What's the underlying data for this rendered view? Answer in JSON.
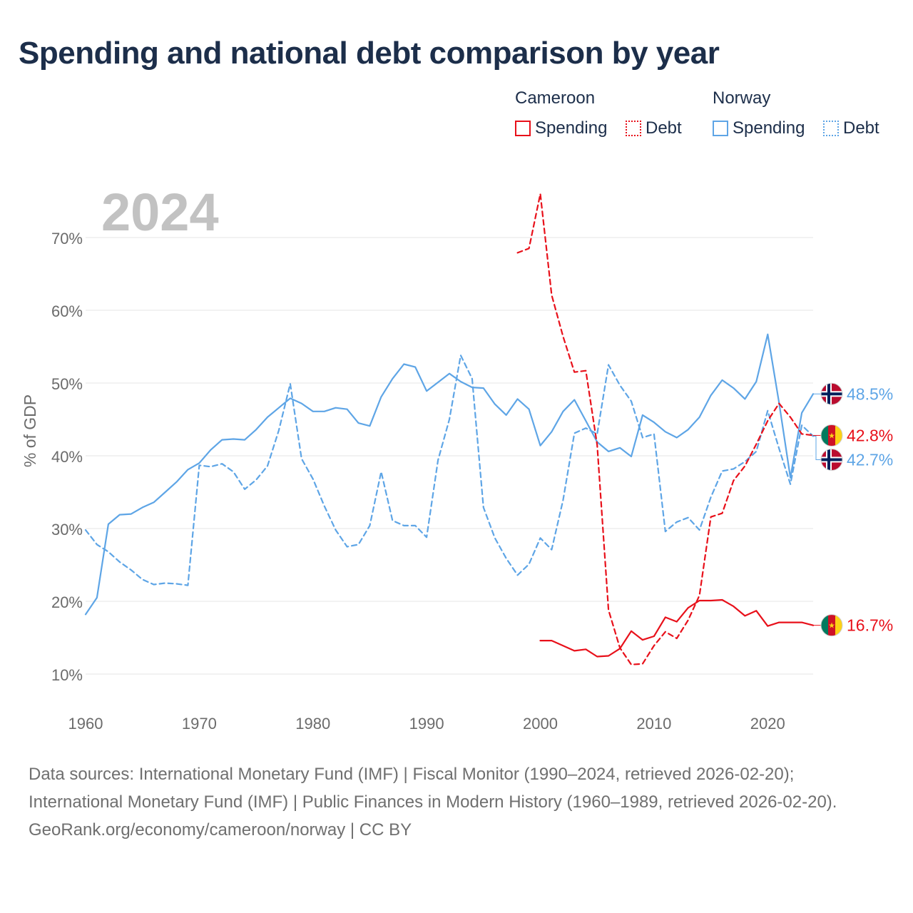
{
  "title": "Spending and national debt comparison by year",
  "legend": {
    "groups": [
      {
        "name": "Cameroon",
        "color": "#e8101a",
        "items": [
          {
            "label": "Spending",
            "style": "solid"
          },
          {
            "label": "Debt",
            "style": "dotted"
          }
        ]
      },
      {
        "name": "Norway",
        "color": "#5ea5e6",
        "items": [
          {
            "label": "Spending",
            "style": "solid"
          },
          {
            "label": "Debt",
            "style": "dotted"
          }
        ]
      }
    ]
  },
  "year_label": "2024",
  "footer": {
    "sources": "Data sources: International Monetary Fund (IMF) | Fiscal Monitor (1990–2024, retrieved 2026-02-20); International Monetary Fund (IMF) | Public Finances in Modern History (1960–1989, retrieved 2026-02-20).",
    "credit": "GeoRank.org/economy/cameroon/norway | CC BY"
  },
  "colors": {
    "cameroon": "#e8101a",
    "norway": "#5ea5e6",
    "title": "#1c2e4a",
    "year": "#c2c2c2",
    "grid": "#e6e6e6",
    "axis_text": "#6b6b6b"
  },
  "chart_data": {
    "type": "line",
    "title": "Spending and national debt comparison by year",
    "xlabel": "",
    "ylabel": "% of GDP",
    "xlim": [
      1960,
      2024
    ],
    "ylim": [
      7,
      75
    ],
    "x_ticks": [
      1960,
      1970,
      1980,
      1990,
      2000,
      2010,
      2020
    ],
    "y_ticks": [
      10,
      20,
      30,
      40,
      50,
      60,
      70
    ],
    "y_tick_labels": [
      "10%",
      "20%",
      "30%",
      "40%",
      "50%",
      "60%",
      "70%"
    ],
    "grid": true,
    "legend_position": "top-right",
    "series": [
      {
        "name": "Norway Spending",
        "country": "Norway",
        "metric": "Spending",
        "style": "solid",
        "x": [
          1960,
          1961,
          1962,
          1963,
          1964,
          1965,
          1966,
          1967,
          1968,
          1969,
          1970,
          1971,
          1972,
          1973,
          1974,
          1975,
          1976,
          1977,
          1978,
          1979,
          1980,
          1981,
          1982,
          1983,
          1984,
          1985,
          1986,
          1987,
          1988,
          1989,
          1990,
          1991,
          1992,
          1993,
          1994,
          1995,
          1996,
          1997,
          1998,
          1999,
          2000,
          2001,
          2002,
          2003,
          2004,
          2005,
          2006,
          2007,
          2008,
          2009,
          2010,
          2011,
          2012,
          2013,
          2014,
          2015,
          2016,
          2017,
          2018,
          2019,
          2020,
          2021,
          2022,
          2023,
          2024
        ],
        "y": [
          18.2,
          20.5,
          30.6,
          31.9,
          32.0,
          32.9,
          33.6,
          35.0,
          36.4,
          38.1,
          39.0,
          40.8,
          42.2,
          42.3,
          42.2,
          43.6,
          45.3,
          46.6,
          47.9,
          47.2,
          46.1,
          46.1,
          46.6,
          46.4,
          44.5,
          44.1,
          48.1,
          50.6,
          52.6,
          52.2,
          48.9,
          50.1,
          51.3,
          50.2,
          49.4,
          49.3,
          47.1,
          45.6,
          47.8,
          46.4,
          41.4,
          43.3,
          46.1,
          47.7,
          44.8,
          41.9,
          40.6,
          41.1,
          39.9,
          45.6,
          44.6,
          43.3,
          42.5,
          43.6,
          45.3,
          48.3,
          50.4,
          49.3,
          47.8,
          50.2,
          56.7,
          47.3,
          37.0,
          45.9,
          48.5
        ],
        "end_label": "48.5%"
      },
      {
        "name": "Norway Debt",
        "country": "Norway",
        "metric": "Debt",
        "style": "dotted",
        "x": [
          1960,
          1961,
          1962,
          1963,
          1964,
          1965,
          1966,
          1967,
          1968,
          1969,
          1970,
          1971,
          1972,
          1973,
          1974,
          1975,
          1976,
          1977,
          1978,
          1979,
          1980,
          1981,
          1982,
          1983,
          1984,
          1985,
          1986,
          1987,
          1988,
          1989,
          1990,
          1991,
          1992,
          1993,
          1994,
          1995,
          1996,
          1997,
          1998,
          1999,
          2000,
          2001,
          2002,
          2003,
          2004,
          2005,
          2006,
          2007,
          2008,
          2009,
          2010,
          2011,
          2012,
          2013,
          2014,
          2015,
          2016,
          2017,
          2018,
          2019,
          2020,
          2021,
          2022,
          2023,
          2024
        ],
        "y": [
          29.8,
          27.8,
          26.8,
          25.4,
          24.3,
          23.0,
          22.3,
          22.5,
          22.4,
          22.2,
          38.7,
          38.5,
          38.9,
          37.8,
          35.4,
          36.7,
          38.6,
          43.5,
          49.9,
          39.6,
          36.8,
          33.1,
          29.8,
          27.5,
          27.8,
          30.4,
          37.8,
          31.1,
          30.4,
          30.4,
          28.8,
          39.4,
          45.0,
          53.8,
          50.6,
          32.9,
          28.7,
          25.9,
          23.6,
          25.1,
          28.7,
          27.1,
          33.9,
          43.1,
          43.8,
          43.0,
          52.5,
          49.7,
          47.5,
          42.5,
          43.0,
          29.6,
          30.9,
          31.5,
          29.8,
          34.3,
          37.9,
          38.2,
          39.2,
          40.6,
          46.2,
          41.0,
          36.1,
          44.2,
          42.7
        ],
        "end_label": "42.7%"
      },
      {
        "name": "Cameroon Spending",
        "country": "Cameroon",
        "metric": "Spending",
        "style": "solid",
        "x": [
          2000,
          2001,
          2002,
          2003,
          2004,
          2005,
          2006,
          2007,
          2008,
          2009,
          2010,
          2011,
          2012,
          2013,
          2014,
          2015,
          2016,
          2017,
          2018,
          2019,
          2020,
          2021,
          2022,
          2023,
          2024
        ],
        "y": [
          14.6,
          14.6,
          13.9,
          13.2,
          13.4,
          12.4,
          12.5,
          13.5,
          15.9,
          14.7,
          15.2,
          17.8,
          17.2,
          19.1,
          20.1,
          20.1,
          20.2,
          19.3,
          18.0,
          18.7,
          16.6,
          17.1,
          17.1,
          17.1,
          16.7
        ],
        "end_label": "16.7%"
      },
      {
        "name": "Cameroon Debt",
        "country": "Cameroon",
        "metric": "Debt",
        "style": "dotted",
        "x": [
          1998,
          1999,
          2000,
          2001,
          2002,
          2003,
          2004,
          2005,
          2006,
          2007,
          2008,
          2009,
          2010,
          2011,
          2012,
          2013,
          2014,
          2015,
          2016,
          2017,
          2018,
          2019,
          2020,
          2021,
          2022,
          2023,
          2024
        ],
        "y": [
          67.9,
          68.5,
          76.0,
          62.1,
          56.4,
          51.5,
          51.7,
          41.5,
          18.8,
          13.6,
          11.3,
          11.4,
          13.9,
          15.8,
          14.9,
          17.4,
          20.8,
          31.6,
          32.1,
          36.6,
          38.6,
          41.6,
          44.8,
          47.2,
          45.3,
          43.0,
          42.8
        ],
        "end_label": "42.8%"
      }
    ]
  }
}
